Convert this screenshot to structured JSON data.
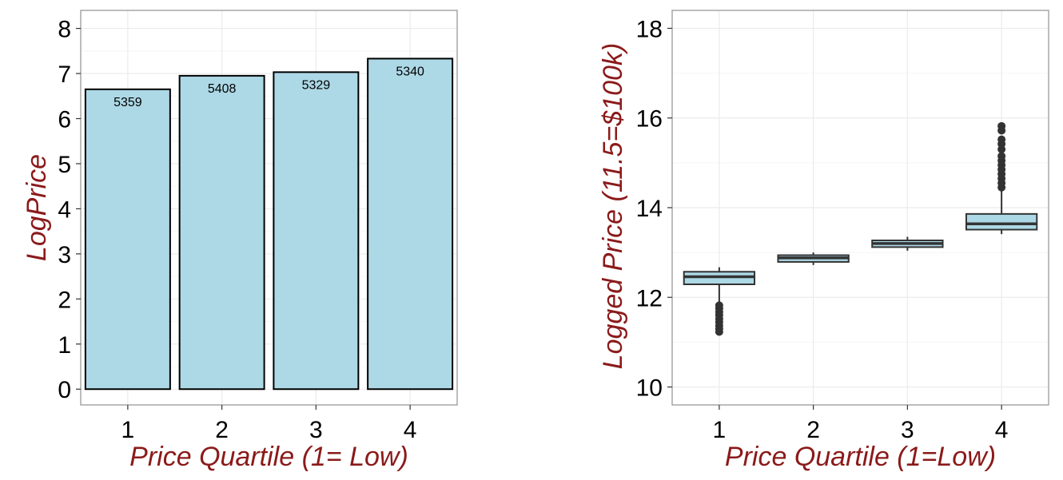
{
  "theme": {
    "bar_fill": "#add8e6",
    "bar_stroke": "#000000",
    "box_fill": "#add8e6",
    "box_stroke": "#333333",
    "outlier_color": "#333333",
    "axis_title_color": "#8b1a1a",
    "grid_color": "#ebebeb",
    "panel_border": "#999999"
  },
  "chart_data": [
    {
      "type": "bar",
      "categories": [
        "1",
        "2",
        "3",
        "4"
      ],
      "values": [
        6.65,
        6.95,
        7.03,
        7.33
      ],
      "data_labels": [
        "5359",
        "5408",
        "5329",
        "5340"
      ],
      "xlabel": "Price Quartile (1= Low)",
      "ylabel": "LogPrice",
      "ylim": [
        -0.35,
        8.4
      ],
      "yticks": [
        0,
        1,
        2,
        3,
        4,
        5,
        6,
        7,
        8
      ],
      "ytick_labels": [
        "0",
        "1",
        "2",
        "3",
        "4",
        "5",
        "6",
        "7",
        "8"
      ],
      "xtick_labels": [
        "1",
        "2",
        "3",
        "4"
      ],
      "grid": true
    },
    {
      "type": "box",
      "categories": [
        "1",
        "2",
        "3",
        "4"
      ],
      "boxes": [
        {
          "q1": 12.29,
          "median": 12.46,
          "q3": 12.57,
          "whisker_low": 11.88,
          "whisker_high": 12.67,
          "outliers": [
            11.23,
            11.3,
            11.37,
            11.45,
            11.52,
            11.6,
            11.67,
            11.75,
            11.82
          ]
        },
        {
          "q1": 12.79,
          "median": 12.88,
          "q3": 12.94,
          "whisker_low": 12.72,
          "whisker_high": 13.0,
          "outliers": []
        },
        {
          "q1": 13.12,
          "median": 13.2,
          "q3": 13.27,
          "whisker_low": 13.04,
          "whisker_high": 13.35,
          "outliers": []
        },
        {
          "q1": 13.51,
          "median": 13.64,
          "q3": 13.86,
          "whisker_low": 13.41,
          "whisker_high": 14.38,
          "outliers": [
            14.45,
            14.55,
            14.65,
            14.75,
            14.85,
            14.95,
            15.05,
            15.15,
            15.3,
            15.42,
            15.52,
            15.72,
            15.82
          ]
        }
      ],
      "xlabel": "Price Quartile (1=Low)",
      "ylabel": "Logged Price (11.5=$100k)",
      "ylim": [
        9.6,
        18.4
      ],
      "yticks": [
        10,
        12,
        14,
        16,
        18
      ],
      "ytick_labels": [
        "10",
        "12",
        "14",
        "16",
        "18"
      ],
      "xtick_labels": [
        "1",
        "2",
        "3",
        "4"
      ],
      "grid": true
    }
  ]
}
